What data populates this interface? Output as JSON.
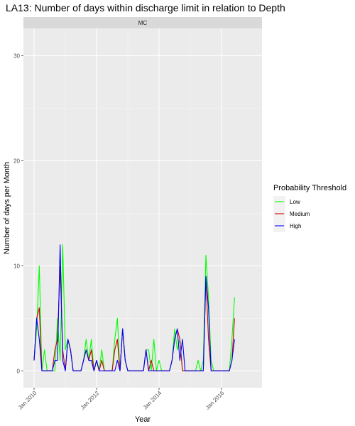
{
  "chart_data": {
    "type": "line",
    "title": "LA13: Number of days within discharge limit in relation to Depth",
    "facet_label": "MC",
    "xlabel": "Year",
    "ylabel": "Number of days per Month",
    "x_tick_labels": [
      "Jan 2010",
      "Jan 2012",
      "Jan 2014",
      "Jan 2016"
    ],
    "y_ticks": [
      0,
      10,
      20,
      30
    ],
    "ylim": [
      -1.6,
      32.6
    ],
    "x_start_label": "Jan 2010",
    "x_end_label": "Nov 2016",
    "grid": true,
    "legend": {
      "title": "Probability Threshold",
      "position": "right"
    },
    "series": [
      {
        "name": "Low",
        "color": "#00ff00",
        "values": [
          1,
          4,
          10,
          0,
          2,
          0,
          0,
          0,
          0,
          5,
          1,
          12,
          2,
          3,
          2,
          0,
          0,
          0,
          0,
          1,
          3,
          1,
          3,
          0,
          1,
          0,
          2,
          0,
          0,
          0,
          0,
          3,
          5,
          0,
          4,
          1,
          0,
          0,
          0,
          0,
          0,
          0,
          0,
          2,
          2,
          0,
          3,
          0,
          1,
          0,
          0,
          0,
          0,
          1,
          4,
          2,
          3,
          0,
          0,
          0,
          0,
          0,
          0,
          1,
          0,
          1,
          11,
          7,
          1,
          0,
          0,
          0,
          0,
          0,
          0,
          0,
          3,
          7
        ]
      },
      {
        "name": "Medium",
        "color": "#cc0000",
        "values": [
          1,
          5,
          6,
          0,
          0,
          0,
          0,
          0,
          2,
          3,
          10,
          2,
          0,
          3,
          2,
          0,
          0,
          0,
          0,
          1,
          2,
          1,
          2,
          0,
          1,
          0,
          1,
          0,
          0,
          0,
          0,
          2,
          3,
          0,
          4,
          1,
          0,
          0,
          0,
          0,
          0,
          0,
          0,
          2,
          0,
          1,
          0,
          0,
          0,
          0,
          0,
          0,
          0,
          1,
          3,
          4,
          3,
          0,
          0,
          0,
          0,
          0,
          0,
          0,
          0,
          0,
          9,
          3,
          0,
          0,
          0,
          0,
          0,
          0,
          0,
          0,
          1,
          5
        ]
      },
      {
        "name": "High",
        "color": "#0000ff",
        "values": [
          1,
          5,
          3,
          0,
          0,
          0,
          0,
          0,
          1,
          1,
          12,
          1,
          0,
          3,
          2,
          0,
          0,
          0,
          0,
          1,
          2,
          1,
          1,
          0,
          1,
          0,
          0,
          0,
          0,
          0,
          0,
          0,
          1,
          0,
          4,
          1,
          0,
          0,
          0,
          0,
          0,
          0,
          0,
          2,
          0,
          0,
          0,
          0,
          0,
          0,
          0,
          0,
          0,
          1,
          3,
          4,
          1,
          3,
          0,
          0,
          0,
          0,
          0,
          0,
          0,
          0,
          9,
          6,
          0,
          0,
          0,
          0,
          0,
          0,
          0,
          0,
          1,
          3
        ]
      }
    ]
  }
}
